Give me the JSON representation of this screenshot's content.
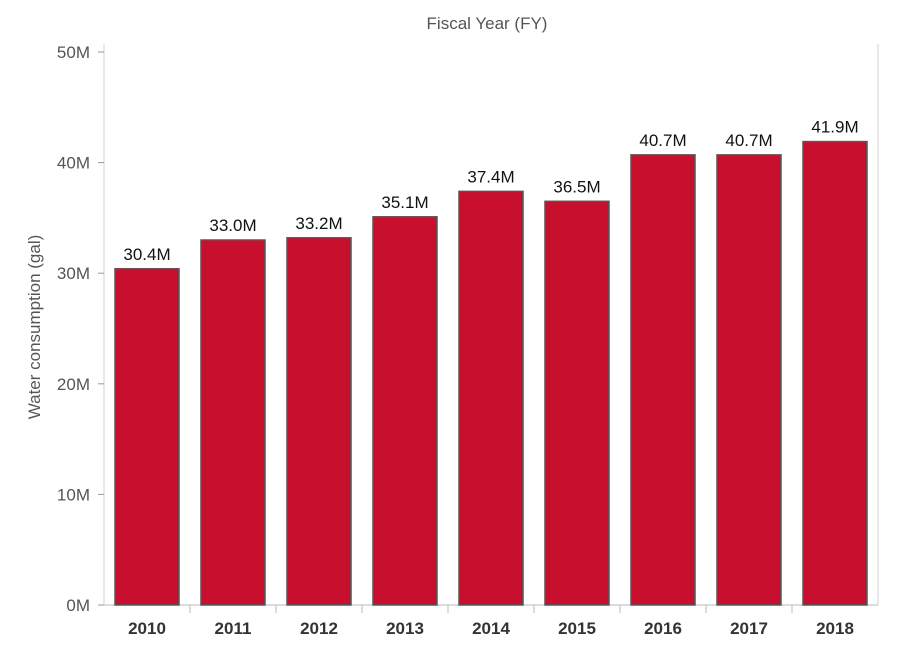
{
  "chart_data": {
    "type": "bar",
    "title": "Fiscal Year (FY)",
    "xlabel": "",
    "ylabel": "Water consumption (gal)",
    "categories": [
      "2010",
      "2011",
      "2012",
      "2013",
      "2014",
      "2015",
      "2016",
      "2017",
      "2018"
    ],
    "values": [
      30.4,
      33.0,
      33.2,
      35.1,
      37.4,
      36.5,
      40.7,
      40.7,
      41.9
    ],
    "value_unit": "M gal",
    "data_labels": [
      "30.4M",
      "33.0M",
      "33.2M",
      "35.1M",
      "37.4M",
      "36.5M",
      "40.7M",
      "40.7M",
      "41.9M"
    ],
    "yticks": [
      0,
      10,
      20,
      30,
      40,
      50
    ],
    "ytick_labels": [
      "0M",
      "10M",
      "20M",
      "30M",
      "40M",
      "50M"
    ],
    "ylim": [
      0,
      50
    ],
    "grid": false,
    "colors": {
      "bar": "#c8102e",
      "bar_outline": "#555555",
      "frame": "#d0d0d0"
    }
  }
}
